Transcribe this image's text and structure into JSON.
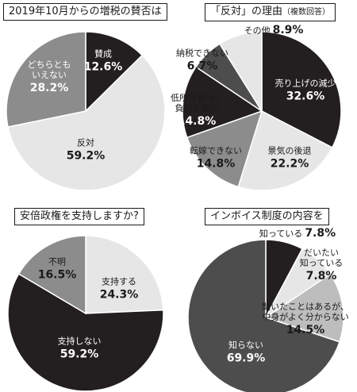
{
  "colors": {
    "black": "#231f20",
    "dark": "#4d4d4d",
    "mid": "#8c8c8c",
    "light": "#bdbdbd",
    "pale": "#e6e6e6"
  },
  "chart_data": [
    {
      "type": "pie",
      "title": "2019年10月からの増税の賛否は",
      "series": [
        {
          "name": "賛成",
          "value": 12.6,
          "label": "12.6%"
        },
        {
          "name": "反対",
          "value": 59.2,
          "label": "59.2%"
        },
        {
          "name": "どちらとも\nいえない",
          "value": 28.2,
          "label": "28.2%"
        }
      ]
    },
    {
      "type": "pie",
      "title": "「反対」の理由",
      "title_note": "（複数回答）",
      "series": [
        {
          "name": "売り上げの減少",
          "value": 32.6,
          "label": "32.6%"
        },
        {
          "name": "景気の後退",
          "value": 22.2,
          "label": "22.2%"
        },
        {
          "name": "転嫁できない",
          "value": 14.8,
          "label": "14.8%"
        },
        {
          "name": "低所得者ほど\n負担が重い",
          "value": 14.8,
          "label": "14.8%"
        },
        {
          "name": "納税できない",
          "value": 6.7,
          "label": "6.7%"
        },
        {
          "name": "その他",
          "value": 8.9,
          "label": "8.9%"
        }
      ]
    },
    {
      "type": "pie",
      "title": "安倍政権を支持しますか?",
      "series": [
        {
          "name": "支持する",
          "value": 24.3,
          "label": "24.3%"
        },
        {
          "name": "支持しない",
          "value": 59.2,
          "label": "59.2%"
        },
        {
          "name": "不明",
          "value": 16.5,
          "label": "16.5%"
        }
      ]
    },
    {
      "type": "pie",
      "title": "インボイス制度の内容を",
      "series": [
        {
          "name": "知っている",
          "value": 7.8,
          "label": "7.8%"
        },
        {
          "name": "だいたい\n知っている",
          "value": 7.8,
          "label": "7.8%"
        },
        {
          "name": "聞いたことはあるが、\n中身がよく分からない",
          "value": 14.5,
          "label": "14.5%"
        },
        {
          "name": "知らない",
          "value": 69.9,
          "label": "69.9%"
        }
      ]
    }
  ]
}
